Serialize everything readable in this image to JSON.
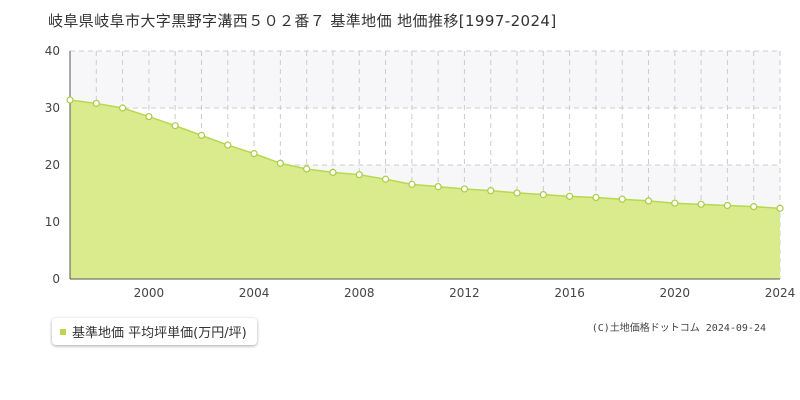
{
  "title": "岐阜県岐阜市大字黒野字溝西５０２番７ 基準地価 地価推移[1997-2024]",
  "legend": {
    "label": "基準地価 平均坪単価(万円/坪)"
  },
  "copyright": "(C)土地価格ドットコム 2024-09-24",
  "colors": {
    "fill": "#d9eb8c",
    "line": "#b7d84f",
    "point_fill": "#ffffff",
    "point_stroke": "#a9cc45",
    "grid": "#cccccc",
    "band": "#f7f7f9",
    "axis": "#555555"
  },
  "chart_data": {
    "type": "area",
    "x": [
      1997,
      1998,
      1999,
      2000,
      2001,
      2002,
      2003,
      2004,
      2005,
      2006,
      2007,
      2008,
      2009,
      2010,
      2011,
      2012,
      2013,
      2014,
      2015,
      2016,
      2017,
      2018,
      2019,
      2020,
      2021,
      2022,
      2023,
      2024
    ],
    "series": [
      {
        "name": "基準地価 平均坪単価(万円/坪)",
        "values": [
          31.4,
          30.8,
          30.0,
          28.5,
          26.9,
          25.2,
          23.5,
          22.0,
          20.3,
          19.3,
          18.7,
          18.3,
          17.5,
          16.6,
          16.2,
          15.8,
          15.5,
          15.1,
          14.8,
          14.5,
          14.3,
          14.0,
          13.7,
          13.3,
          13.1,
          12.9,
          12.7,
          12.4
        ]
      }
    ],
    "xlim": [
      1997,
      2024
    ],
    "ylim": [
      0,
      40
    ],
    "xticks": [
      2000,
      2004,
      2008,
      2012,
      2016,
      2020,
      2024
    ],
    "yticks": [
      0,
      10,
      20,
      30,
      40
    ],
    "grid": true
  }
}
